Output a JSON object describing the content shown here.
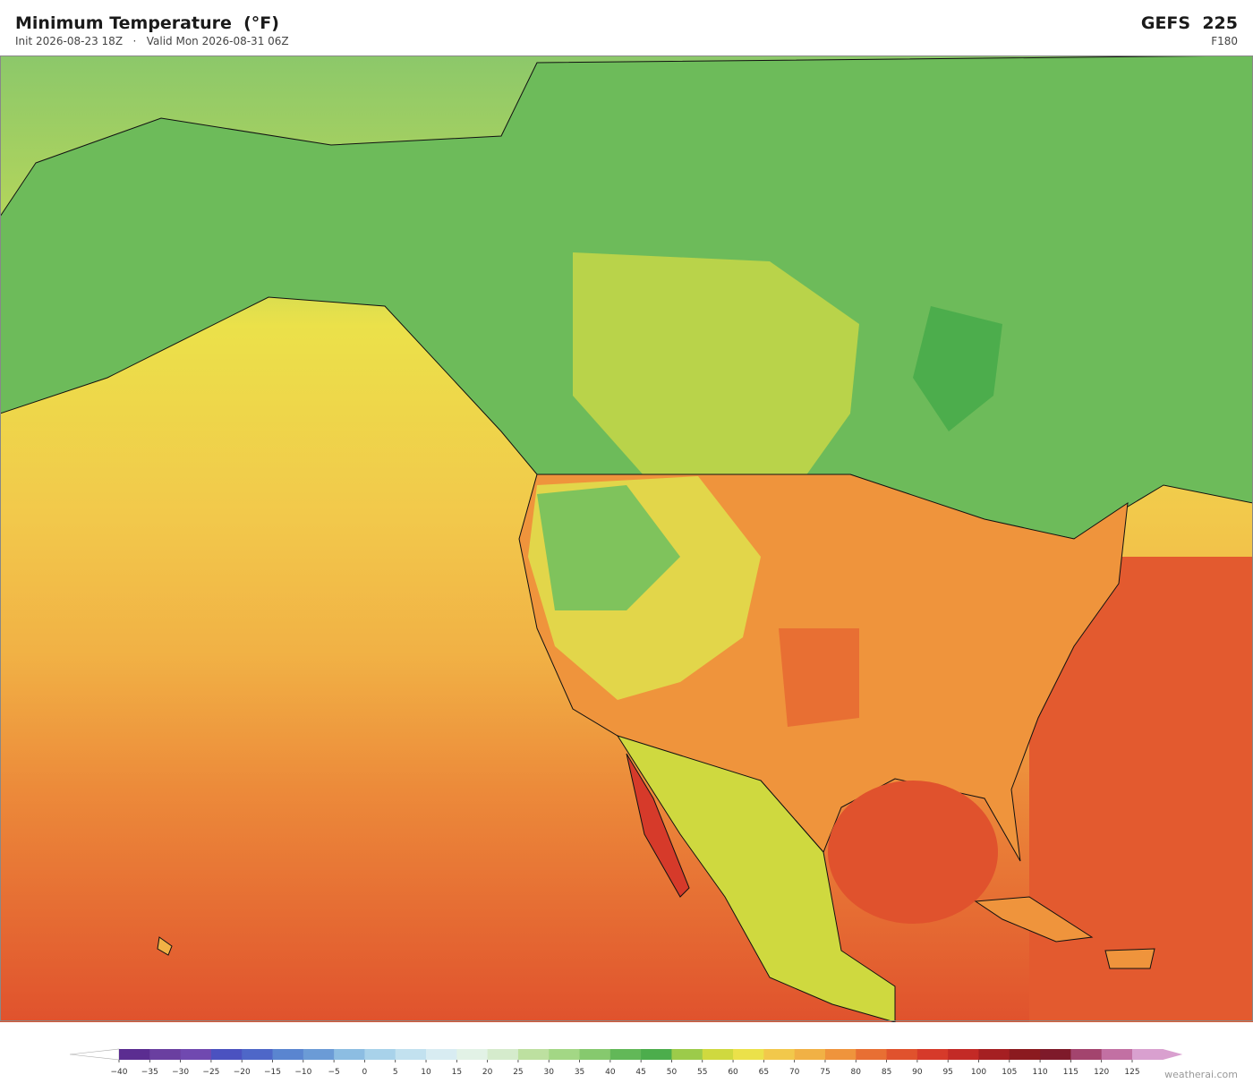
{
  "header": {
    "title": "Minimum Temperature  (°F)",
    "subtitle": "Init 2026-08-23 18Z   ·   Valid Mon 2026-08-31 06Z",
    "model": "GEFS  225",
    "forecast_hour": "F180"
  },
  "colorbar": {
    "ticks": [
      {
        "value": -40,
        "label": "−40"
      },
      {
        "value": -35,
        "label": "−35"
      },
      {
        "value": -30,
        "label": "−30"
      },
      {
        "value": -25,
        "label": "−25"
      },
      {
        "value": -20,
        "label": "−20"
      },
      {
        "value": -15,
        "label": "−15"
      },
      {
        "value": -10,
        "label": "−10"
      },
      {
        "value": -5,
        "label": "−5"
      },
      0,
      5,
      10,
      15,
      20,
      25,
      30,
      35,
      40,
      45,
      50,
      55,
      60,
      65,
      70,
      75,
      80,
      85,
      90,
      95,
      100,
      105,
      110,
      115,
      120,
      125
    ],
    "colors": [
      "#5b2d91",
      "#6a3fa0",
      "#7049b0",
      "#4b52c0",
      "#4e67c8",
      "#5a85d0",
      "#6b9bd6",
      "#8cbde2",
      "#a8d2ea",
      "#c2e1ef",
      "#d8ecf2",
      "#e2f2e6",
      "#d5ebcc",
      "#bde0a0",
      "#a3d785",
      "#86c96e",
      "#62b858",
      "#4cad4c",
      "#9ccb4a",
      "#cfd93f",
      "#ebe14a",
      "#f2c84b",
      "#f1b145",
      "#ef943c",
      "#e86f33",
      "#e0522d",
      "#d63a2a",
      "#c32a26",
      "#a51f22",
      "#8b1a1f",
      "#7e1a2a",
      "#a3446e",
      "#c270a3",
      "#d9a0cf"
    ]
  },
  "watermark": "weatherai.com"
}
